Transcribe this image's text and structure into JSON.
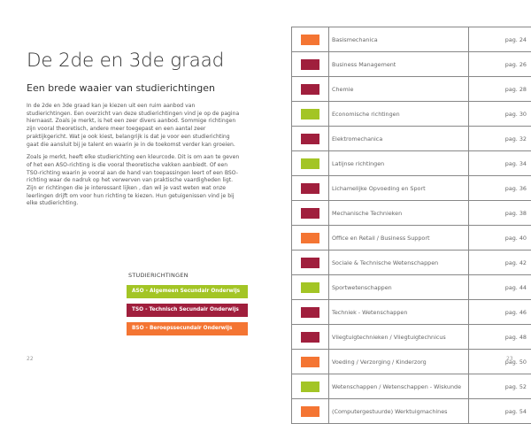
{
  "colors": {
    "aso": "#a3c525",
    "tso": "#a01f3d",
    "bso": "#f47533"
  },
  "left": {
    "title": "De 2de  en 3de graad",
    "subtitle": "Een brede waaier van studierichtingen",
    "paragraphs": [
      "In de 2de en 3de graad kan je kiezen uit een ruim aanbod van studierichtingen. Een overzicht van deze studierichtingen vind je op de pagina hiernaast. Zoals je merkt, is het een zeer divers aanbod. Sommige richtingen zijn vooral theoretisch, andere meer toegepast en een aantal zeer praktijkgericht. Wat je ook kiest, belangrijk is dat je voor een studierichting gaat die aansluit bij je talent en waarin je in de toekomst verder kan groeien.",
      "Zoals je merkt, heeft elke studierichting een kleurcode. Dit is om aan te geven of het een ASO-richting is die vooral theoretische vakken aanbiedt. Of een TSO-richting waarin je vooral aan de hand van toepassingen leert of een BSO-richting waar de nadruk op het verwerven van praktische vaardigheden ligt. Zijn er richtingen die je interessant lijken , dan wil je vast weten wat onze leerlingen drijft om voor hun richting te kiezen. Hun getuigenissen vind je bij elke studierichting."
    ],
    "legend_title": "STUDIERICHTINGEN",
    "legend": [
      {
        "type": "aso",
        "label": "ASO - Algemeen Secundair Onderwijs"
      },
      {
        "type": "tso",
        "label": "TSO - Technisch Secundair Onderwijs"
      },
      {
        "type": "bso",
        "label": "BSO - Beroepssecundair Onderwijs"
      }
    ],
    "page_number": "22"
  },
  "right": {
    "entries": [
      {
        "type": "bso",
        "name": "Basismechanica",
        "page": "pag. 24"
      },
      {
        "type": "tso",
        "name": "Business Management",
        "page": "pag. 26"
      },
      {
        "type": "tso",
        "name": "Chemie",
        "page": "pag. 28"
      },
      {
        "type": "aso",
        "name": "Economische richtingen",
        "page": "pag. 30"
      },
      {
        "type": "tso",
        "name": "Elektromechanica",
        "page": "pag. 32"
      },
      {
        "type": "aso",
        "name": "Latijnse richtingen",
        "page": "pag. 34"
      },
      {
        "type": "tso",
        "name": "Lichamelijke Opvoeding en Sport",
        "page": "pag. 36"
      },
      {
        "type": "tso",
        "name": "Mechanische Technieken",
        "page": "pag. 38"
      },
      {
        "type": "bso",
        "name": "Office en Retail / Business Support",
        "page": "pag. 40"
      },
      {
        "type": "tso",
        "name": "Sociale & Technische Wetenschappen",
        "page": "pag. 42"
      },
      {
        "type": "aso",
        "name": "Sportwetenschappen",
        "page": "pag. 44"
      },
      {
        "type": "tso",
        "name": "Techniek - Wetenschappen",
        "page": "pag. 46"
      },
      {
        "type": "tso",
        "name": "Vliegtuigtechnieken / Vliegtuigtechnicus",
        "page": "pag. 48"
      },
      {
        "type": "bso",
        "name": "Voeding / Verzorging / Kinderzorg",
        "page": "pag. 50"
      },
      {
        "type": "aso",
        "name": "Wetenschappen / Wetenschappen - Wiskunde",
        "page": "pag. 52"
      },
      {
        "type": "bso",
        "name": "(Computergestuurde) Werktuigmachines",
        "page": "pag. 54"
      }
    ],
    "page_number": "23"
  }
}
